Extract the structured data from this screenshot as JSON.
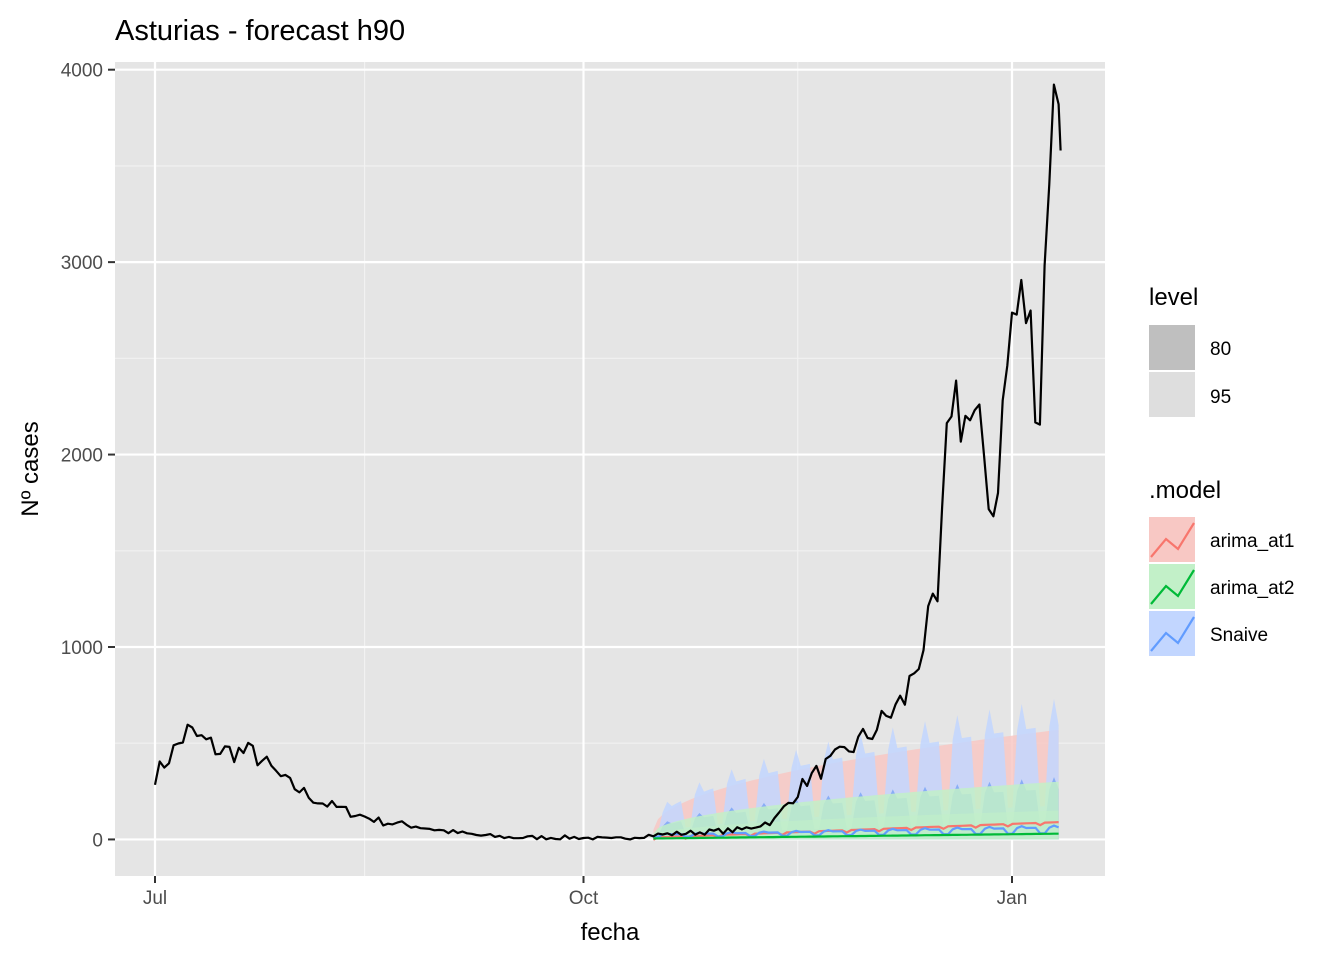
{
  "chart_data": {
    "type": "line",
    "title": "Asturias - forecast h90",
    "xlabel": "fecha",
    "ylabel": "Nº cases",
    "x_ticks": [
      "Jul",
      "Oct",
      "Jan"
    ],
    "y_ticks": [
      0,
      1000,
      2000,
      3000,
      4000
    ],
    "ylim": [
      -190,
      4040
    ],
    "grid": true,
    "background": "#E5E5E5",
    "legend_position": "right",
    "legend": {
      "level_title": "level",
      "levels": [
        "80",
        "95"
      ],
      "model_title": ".model",
      "models": [
        {
          "name": "arima_at1",
          "color": "#F8766D",
          "fill": "#F8C8C4"
        },
        {
          "name": "arima_at2",
          "color": "#00BA38",
          "fill": "#C2F0C8"
        },
        {
          "name": "Snaive",
          "color": "#619CFF",
          "fill": "#C2D6FF"
        }
      ]
    },
    "observed": {
      "x": [
        "2020-07-01",
        "2020-07-08",
        "2020-07-15",
        "2020-07-22",
        "2020-07-29",
        "2020-08-05",
        "2020-08-12",
        "2020-08-19",
        "2020-08-26",
        "2020-09-02",
        "2020-09-09",
        "2020-09-16",
        "2020-09-23",
        "2020-09-30",
        "2020-10-07",
        "2020-10-14",
        "2020-10-21",
        "2020-10-28",
        "2020-11-04",
        "2020-11-11",
        "2020-11-18",
        "2020-11-25",
        "2020-12-02",
        "2020-12-09",
        "2020-12-13",
        "2020-12-16",
        "2020-12-19",
        "2020-12-23",
        "2020-12-26",
        "2020-12-28",
        "2021-01-01",
        "2021-01-04",
        "2021-01-07",
        "2021-01-09",
        "2021-01-11"
      ],
      "y": [
        330,
        560,
        460,
        450,
        300,
        200,
        140,
        90,
        70,
        40,
        20,
        10,
        10,
        10,
        0,
        20,
        30,
        40,
        50,
        100,
        310,
        430,
        560,
        730,
        1030,
        1200,
        2360,
        2150,
        2000,
        1700,
        2700,
        2770,
        2260,
        3650,
        3820
      ]
    },
    "forecast_x": [
      "2020-10-16",
      "2021-01-11"
    ],
    "forecasts": [
      {
        "name": "arima_at1",
        "mean": [
          10,
          90
        ],
        "lo80": [
          0,
          0
        ],
        "hi80": [
          30,
          280
        ],
        "lo95": [
          0,
          0
        ],
        "hi95": [
          50,
          570
        ]
      },
      {
        "name": "arima_at2",
        "mean": [
          5,
          30
        ],
        "lo80": [
          0,
          0
        ],
        "hi80": [
          20,
          150
        ],
        "lo95": [
          0,
          0
        ],
        "hi95": [
          30,
          300
        ]
      },
      {
        "name": "Snaive",
        "mean": [
          20,
          50
        ],
        "lo80": [
          0,
          0
        ],
        "hi80": [
          40,
          310
        ],
        "lo95": [
          0,
          0
        ],
        "hi95": [
          70,
          700
        ]
      }
    ]
  }
}
